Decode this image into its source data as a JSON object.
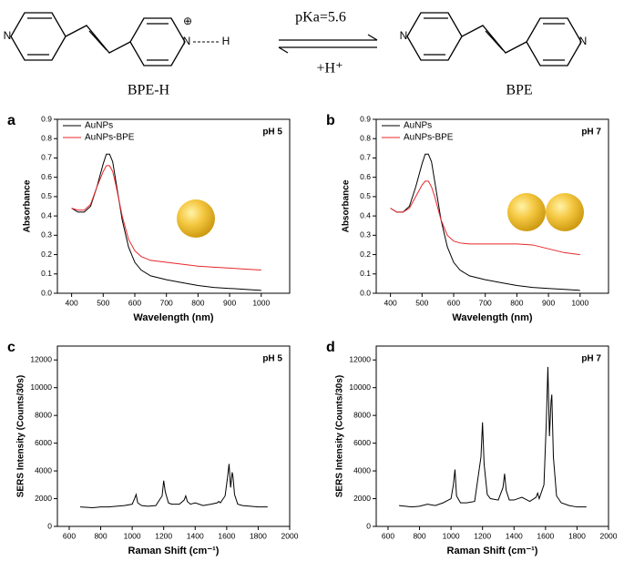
{
  "scheme": {
    "left_label": "BPE-H",
    "right_label": "BPE",
    "arrow_top": "pKa=5.6",
    "arrow_bottom": "+H⁺",
    "charge": "⊕",
    "atoms": [
      "N",
      "N",
      "H",
      "N",
      "N"
    ]
  },
  "chart_data": [
    {
      "type": "line",
      "panel": "a",
      "annotation": "pH 5",
      "x_label": "Wavelength (nm)",
      "y_label": "Absorbance",
      "x": [
        400,
        420,
        440,
        460,
        480,
        500,
        510,
        520,
        530,
        540,
        560,
        580,
        600,
        620,
        650,
        700,
        750,
        800,
        850,
        900,
        950,
        1000
      ],
      "series": [
        {
          "name": "AuNPs",
          "color": "#000000",
          "values": [
            0.44,
            0.42,
            0.42,
            0.45,
            0.55,
            0.67,
            0.72,
            0.72,
            0.68,
            0.58,
            0.38,
            0.24,
            0.16,
            0.12,
            0.09,
            0.07,
            0.055,
            0.04,
            0.03,
            0.025,
            0.02,
            0.015
          ]
        },
        {
          "name": "AuNPs-BPE",
          "color": "#e8262a",
          "values": [
            0.44,
            0.43,
            0.43,
            0.46,
            0.55,
            0.63,
            0.66,
            0.66,
            0.63,
            0.56,
            0.4,
            0.28,
            0.22,
            0.19,
            0.17,
            0.16,
            0.15,
            0.14,
            0.135,
            0.13,
            0.125,
            0.12
          ]
        }
      ],
      "xlim": [
        355,
        1090
      ],
      "ylim": [
        0,
        0.9
      ],
      "xticks": [
        400,
        500,
        600,
        700,
        800,
        900,
        1000
      ],
      "yticks": [
        {
          "value": 0,
          "label": "0.0"
        },
        0.1,
        0.2,
        0.3,
        0.4,
        0.5,
        0.6,
        0.7,
        0.8,
        0.9
      ]
    },
    {
      "type": "line",
      "panel": "b",
      "annotation": "pH 7",
      "x_label": "Wavelength (nm)",
      "y_label": "Absorbance",
      "x": [
        400,
        420,
        440,
        460,
        480,
        500,
        510,
        520,
        530,
        540,
        560,
        580,
        600,
        620,
        650,
        700,
        750,
        800,
        850,
        900,
        950,
        1000
      ],
      "series": [
        {
          "name": "AuNPs",
          "color": "#000000",
          "values": [
            0.44,
            0.42,
            0.42,
            0.45,
            0.55,
            0.67,
            0.72,
            0.72,
            0.68,
            0.58,
            0.38,
            0.24,
            0.16,
            0.12,
            0.09,
            0.07,
            0.055,
            0.04,
            0.03,
            0.025,
            0.02,
            0.015
          ]
        },
        {
          "name": "AuNPs-BPE",
          "color": "#e8262a",
          "values": [
            0.44,
            0.42,
            0.42,
            0.44,
            0.5,
            0.56,
            0.58,
            0.58,
            0.55,
            0.5,
            0.38,
            0.3,
            0.27,
            0.26,
            0.255,
            0.255,
            0.255,
            0.255,
            0.25,
            0.23,
            0.21,
            0.2
          ]
        }
      ],
      "xlim": [
        355,
        1090
      ],
      "ylim": [
        0,
        0.9
      ],
      "xticks": [
        400,
        500,
        600,
        700,
        800,
        900,
        1000
      ],
      "yticks": [
        {
          "value": 0,
          "label": "0.0"
        },
        0.1,
        0.2,
        0.3,
        0.4,
        0.5,
        0.6,
        0.7,
        0.8,
        0.9
      ]
    },
    {
      "type": "line",
      "panel": "c",
      "annotation": "pH 5",
      "x_label": "Raman Shift (cm⁻¹)",
      "y_label": "SERS Intensity (Counts/30s)",
      "x": [
        670,
        750,
        800,
        850,
        900,
        950,
        1000,
        1015,
        1025,
        1035,
        1060,
        1100,
        1150,
        1190,
        1200,
        1210,
        1230,
        1250,
        1300,
        1330,
        1340,
        1350,
        1370,
        1400,
        1450,
        1500,
        1540,
        1550,
        1560,
        1590,
        1605,
        1615,
        1625,
        1635,
        1640,
        1650,
        1670,
        1700,
        1750,
        1800,
        1860
      ],
      "series": [
        {
          "color": "#000000",
          "values": [
            1400,
            1350,
            1400,
            1400,
            1450,
            1500,
            1600,
            2000,
            2300,
            1700,
            1500,
            1450,
            1500,
            2200,
            3300,
            2500,
            1700,
            1600,
            1600,
            1900,
            2200,
            1800,
            1600,
            1700,
            1500,
            1600,
            1700,
            1800,
            1700,
            2200,
            3500,
            4500,
            2800,
            3900,
            3600,
            2300,
            1600,
            1500,
            1450,
            1400,
            1400
          ]
        }
      ],
      "xlim": [
        525,
        2000
      ],
      "ylim": [
        0,
        13000
      ],
      "xticks": [
        600,
        800,
        1000,
        1200,
        1400,
        1600,
        1800,
        2000
      ],
      "yticks": [
        0,
        2000,
        4000,
        6000,
        8000,
        10000,
        12000
      ]
    },
    {
      "type": "line",
      "panel": "d",
      "annotation": "pH 7",
      "x_label": "Raman Shift (cm⁻¹)",
      "y_label": "SERS Intensity (Counts/30s)",
      "x": [
        670,
        750,
        800,
        850,
        900,
        950,
        1000,
        1015,
        1025,
        1035,
        1060,
        1100,
        1150,
        1190,
        1200,
        1210,
        1230,
        1250,
        1300,
        1330,
        1340,
        1350,
        1370,
        1400,
        1450,
        1500,
        1540,
        1550,
        1560,
        1590,
        1605,
        1615,
        1625,
        1635,
        1640,
        1650,
        1670,
        1700,
        1750,
        1800,
        1860
      ],
      "series": [
        {
          "color": "#000000",
          "values": [
            1500,
            1400,
            1450,
            1600,
            1500,
            1700,
            2000,
            3000,
            4100,
            2200,
            1700,
            1700,
            1800,
            5000,
            7500,
            4500,
            2300,
            2000,
            1900,
            2800,
            3800,
            2600,
            1900,
            1900,
            2100,
            1800,
            2100,
            2400,
            2000,
            3000,
            7500,
            11500,
            6500,
            9000,
            9500,
            5000,
            2200,
            1700,
            1500,
            1400,
            1400
          ]
        }
      ],
      "xlim": [
        525,
        2000
      ],
      "ylim": [
        0,
        13000
      ],
      "xticks": [
        600,
        800,
        1000,
        1200,
        1400,
        1600,
        1800,
        2000
      ],
      "yticks": [
        0,
        2000,
        4000,
        6000,
        8000,
        10000,
        12000
      ]
    }
  ]
}
